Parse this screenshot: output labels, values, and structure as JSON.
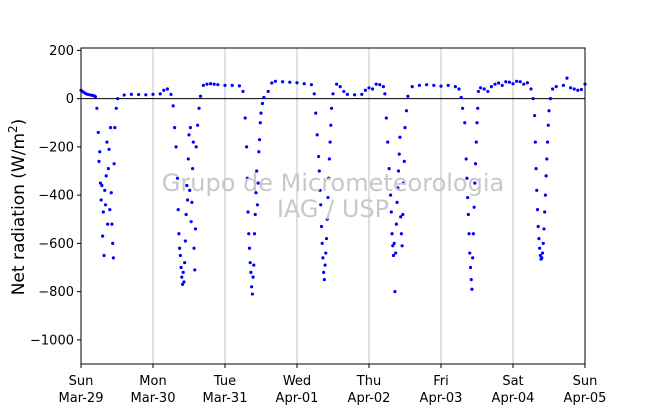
{
  "chart_data": {
    "type": "scatter",
    "ylabel_main": "Net radiation (W/m",
    "ylabel_sup": "2",
    "ylabel_close": ")",
    "ylim": [
      -1100,
      210
    ],
    "xlim": [
      0,
      7
    ],
    "yticks": [
      200,
      0,
      -200,
      -400,
      -600,
      -800,
      -1000
    ],
    "ytick_labels": [
      "200",
      "0",
      "−200",
      "−400",
      "−600",
      "−800",
      "−1000"
    ],
    "xticks": [
      {
        "x": 0,
        "day": "Sun",
        "date": "Mar-29"
      },
      {
        "x": 1,
        "day": "Mon",
        "date": "Mar-30"
      },
      {
        "x": 2,
        "day": "Tue",
        "date": "Mar-31"
      },
      {
        "x": 3,
        "day": "Wed",
        "date": "Apr-01"
      },
      {
        "x": 4,
        "day": "Thu",
        "date": "Apr-02"
      },
      {
        "x": 5,
        "day": "Fri",
        "date": "Apr-03"
      },
      {
        "x": 6,
        "day": "Sat",
        "date": "Apr-04"
      },
      {
        "x": 7,
        "day": "Sun",
        "date": "Apr-05"
      }
    ],
    "vertical_grid": true,
    "zero_line": true,
    "marker_color": "#0000ff",
    "series": [
      {
        "values": [
          [
            0.0,
            35
          ],
          [
            0.03,
            28
          ],
          [
            0.06,
            22
          ],
          [
            0.09,
            18
          ],
          [
            0.12,
            16
          ],
          [
            0.15,
            14
          ],
          [
            0.18,
            12
          ],
          [
            0.2,
            8
          ],
          [
            0.22,
            -40
          ],
          [
            0.24,
            -140
          ],
          [
            0.25,
            -260
          ],
          [
            0.26,
            -220
          ],
          [
            0.27,
            -350
          ],
          [
            0.28,
            -420
          ],
          [
            0.29,
            -360
          ],
          [
            0.3,
            -570
          ],
          [
            0.31,
            -470
          ],
          [
            0.32,
            -650
          ],
          [
            0.33,
            -380
          ],
          [
            0.34,
            -440
          ],
          [
            0.35,
            -320
          ],
          [
            0.36,
            -180
          ],
          [
            0.37,
            -520
          ],
          [
            0.38,
            -290
          ],
          [
            0.39,
            -210
          ],
          [
            0.4,
            -460
          ],
          [
            0.41,
            -120
          ],
          [
            0.42,
            -390
          ],
          [
            0.43,
            -520
          ],
          [
            0.44,
            -600
          ],
          [
            0.45,
            -660
          ],
          [
            0.46,
            -270
          ],
          [
            0.47,
            -120
          ],
          [
            0.49,
            -40
          ],
          [
            0.51,
            0
          ],
          [
            0.6,
            15
          ],
          [
            0.7,
            18
          ],
          [
            0.8,
            17
          ],
          [
            0.9,
            16
          ],
          [
            1.0,
            18
          ],
          [
            1.1,
            20
          ],
          [
            1.15,
            35
          ],
          [
            1.2,
            40
          ],
          [
            1.25,
            18
          ],
          [
            1.28,
            -30
          ],
          [
            1.3,
            -120
          ],
          [
            1.32,
            -200
          ],
          [
            1.34,
            -330
          ],
          [
            1.35,
            -460
          ],
          [
            1.36,
            -560
          ],
          [
            1.37,
            -620
          ],
          [
            1.38,
            -650
          ],
          [
            1.39,
            -700
          ],
          [
            1.4,
            -740
          ],
          [
            1.41,
            -770
          ],
          [
            1.42,
            -720
          ],
          [
            1.43,
            -760
          ],
          [
            1.44,
            -680
          ],
          [
            1.45,
            -590
          ],
          [
            1.46,
            -480
          ],
          [
            1.47,
            -360
          ],
          [
            1.48,
            -420
          ],
          [
            1.49,
            -250
          ],
          [
            1.5,
            -150
          ],
          [
            1.51,
            -380
          ],
          [
            1.52,
            -120
          ],
          [
            1.53,
            -510
          ],
          [
            1.54,
            -430
          ],
          [
            1.55,
            -290
          ],
          [
            1.56,
            -180
          ],
          [
            1.57,
            -620
          ],
          [
            1.58,
            -710
          ],
          [
            1.59,
            -540
          ],
          [
            1.6,
            -200
          ],
          [
            1.62,
            -110
          ],
          [
            1.64,
            -40
          ],
          [
            1.66,
            10
          ],
          [
            1.7,
            55
          ],
          [
            1.75,
            60
          ],
          [
            1.8,
            62
          ],
          [
            1.85,
            60
          ],
          [
            1.9,
            58
          ],
          [
            2.0,
            55
          ],
          [
            2.1,
            55
          ],
          [
            2.2,
            53
          ],
          [
            2.25,
            30
          ],
          [
            2.28,
            -80
          ],
          [
            2.3,
            -200
          ],
          [
            2.31,
            -330
          ],
          [
            2.32,
            -470
          ],
          [
            2.33,
            -560
          ],
          [
            2.34,
            -620
          ],
          [
            2.35,
            -680
          ],
          [
            2.36,
            -720
          ],
          [
            2.37,
            -780
          ],
          [
            2.38,
            -810
          ],
          [
            2.39,
            -740
          ],
          [
            2.4,
            -690
          ],
          [
            2.41,
            -560
          ],
          [
            2.42,
            -480
          ],
          [
            2.43,
            -390
          ],
          [
            2.44,
            -300
          ],
          [
            2.45,
            -440
          ],
          [
            2.46,
            -350
          ],
          [
            2.47,
            -220
          ],
          [
            2.48,
            -170
          ],
          [
            2.49,
            -100
          ],
          [
            2.5,
            -60
          ],
          [
            2.52,
            -20
          ],
          [
            2.54,
            5
          ],
          [
            2.6,
            30
          ],
          [
            2.65,
            65
          ],
          [
            2.7,
            72
          ],
          [
            2.8,
            70
          ],
          [
            2.9,
            68
          ],
          [
            3.0,
            66
          ],
          [
            3.1,
            62
          ],
          [
            3.2,
            58
          ],
          [
            3.24,
            20
          ],
          [
            3.26,
            -60
          ],
          [
            3.28,
            -150
          ],
          [
            3.3,
            -240
          ],
          [
            3.31,
            -300
          ],
          [
            3.32,
            -380
          ],
          [
            3.33,
            -440
          ],
          [
            3.34,
            -530
          ],
          [
            3.35,
            -600
          ],
          [
            3.36,
            -660
          ],
          [
            3.37,
            -720
          ],
          [
            3.38,
            -750
          ],
          [
            3.39,
            -690
          ],
          [
            3.4,
            -640
          ],
          [
            3.41,
            -580
          ],
          [
            3.42,
            -500
          ],
          [
            3.43,
            -410
          ],
          [
            3.44,
            -330
          ],
          [
            3.45,
            -250
          ],
          [
            3.46,
            -180
          ],
          [
            3.47,
            -110
          ],
          [
            3.48,
            -40
          ],
          [
            3.5,
            20
          ],
          [
            3.55,
            60
          ],
          [
            3.6,
            50
          ],
          [
            3.65,
            30
          ],
          [
            3.7,
            18
          ],
          [
            3.8,
            16
          ],
          [
            3.9,
            18
          ],
          [
            3.95,
            35
          ],
          [
            4.0,
            45
          ],
          [
            4.05,
            40
          ],
          [
            4.1,
            60
          ],
          [
            4.15,
            58
          ],
          [
            4.2,
            50
          ],
          [
            4.22,
            20
          ],
          [
            4.24,
            -80
          ],
          [
            4.26,
            -180
          ],
          [
            4.28,
            -290
          ],
          [
            4.3,
            -400
          ],
          [
            4.31,
            -470
          ],
          [
            4.32,
            -560
          ],
          [
            4.33,
            -610
          ],
          [
            4.34,
            -650
          ],
          [
            4.35,
            -600
          ],
          [
            4.36,
            -800
          ],
          [
            4.37,
            -640
          ],
          [
            4.38,
            -520
          ],
          [
            4.39,
            -430
          ],
          [
            4.4,
            -370
          ],
          [
            4.41,
            -300
          ],
          [
            4.42,
            -230
          ],
          [
            4.43,
            -160
          ],
          [
            4.44,
            -490
          ],
          [
            4.45,
            -560
          ],
          [
            4.46,
            -610
          ],
          [
            4.47,
            -480
          ],
          [
            4.48,
            -350
          ],
          [
            4.49,
            -260
          ],
          [
            4.5,
            -120
          ],
          [
            4.52,
            -50
          ],
          [
            4.54,
            10
          ],
          [
            4.6,
            50
          ],
          [
            4.7,
            55
          ],
          [
            4.8,
            58
          ],
          [
            4.9,
            55
          ],
          [
            5.0,
            52
          ],
          [
            5.1,
            55
          ],
          [
            5.2,
            50
          ],
          [
            5.25,
            40
          ],
          [
            5.28,
            5
          ],
          [
            5.3,
            -40
          ],
          [
            5.33,
            -100
          ],
          [
            5.35,
            -250
          ],
          [
            5.36,
            -330
          ],
          [
            5.37,
            -410
          ],
          [
            5.38,
            -480
          ],
          [
            5.39,
            -560
          ],
          [
            5.4,
            -640
          ],
          [
            5.41,
            -700
          ],
          [
            5.42,
            -750
          ],
          [
            5.43,
            -790
          ],
          [
            5.44,
            -660
          ],
          [
            5.45,
            -560
          ],
          [
            5.46,
            -450
          ],
          [
            5.47,
            -350
          ],
          [
            5.48,
            -270
          ],
          [
            5.49,
            -180
          ],
          [
            5.5,
            -100
          ],
          [
            5.51,
            -40
          ],
          [
            5.52,
            30
          ],
          [
            5.55,
            45
          ],
          [
            5.6,
            40
          ],
          [
            5.65,
            30
          ],
          [
            5.7,
            50
          ],
          [
            5.75,
            60
          ],
          [
            5.8,
            65
          ],
          [
            5.85,
            55
          ],
          [
            5.9,
            70
          ],
          [
            5.95,
            68
          ],
          [
            6.0,
            62
          ],
          [
            6.05,
            72
          ],
          [
            6.1,
            70
          ],
          [
            6.15,
            60
          ],
          [
            6.2,
            66
          ],
          [
            6.25,
            40
          ],
          [
            6.28,
            0
          ],
          [
            6.3,
            -70
          ],
          [
            6.31,
            -180
          ],
          [
            6.32,
            -290
          ],
          [
            6.33,
            -380
          ],
          [
            6.34,
            -460
          ],
          [
            6.35,
            -530
          ],
          [
            6.36,
            -580
          ],
          [
            6.37,
            -620
          ],
          [
            6.38,
            -650
          ],
          [
            6.39,
            -665
          ],
          [
            6.4,
            -660
          ],
          [
            6.41,
            -640
          ],
          [
            6.42,
            -600
          ],
          [
            6.43,
            -540
          ],
          [
            6.44,
            -470
          ],
          [
            6.45,
            -400
          ],
          [
            6.46,
            -320
          ],
          [
            6.47,
            -250
          ],
          [
            6.48,
            -180
          ],
          [
            6.49,
            -110
          ],
          [
            6.5,
            -50
          ],
          [
            6.52,
            0
          ],
          [
            6.55,
            40
          ],
          [
            6.6,
            50
          ],
          [
            6.7,
            55
          ],
          [
            6.75,
            85
          ],
          [
            6.8,
            45
          ],
          [
            6.85,
            40
          ],
          [
            6.9,
            35
          ],
          [
            6.95,
            38
          ],
          [
            7.0,
            60
          ]
        ]
      }
    ]
  },
  "watermark": {
    "line1": "Grupo de Micrometeorologia",
    "line2": "IAG / USP"
  }
}
